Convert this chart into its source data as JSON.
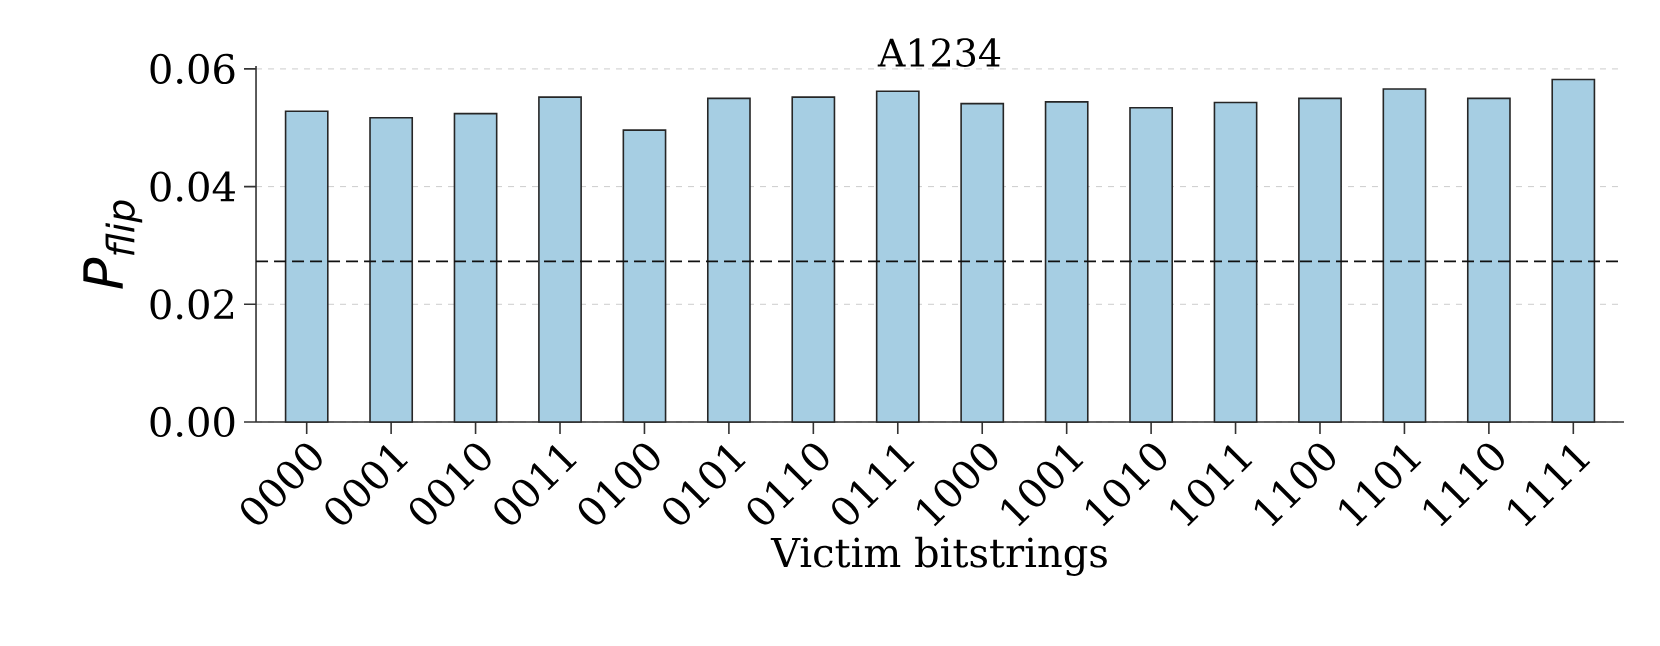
{
  "chart_data": {
    "type": "bar",
    "title": "A1234",
    "xlabel": "Victim bitstrings",
    "ylabel": "P$_{flip}$",
    "categories": [
      "0000",
      "0001",
      "0010",
      "0011",
      "0100",
      "0101",
      "0110",
      "0111",
      "1000",
      "1001",
      "1010",
      "1011",
      "1100",
      "1101",
      "1110",
      "1111"
    ],
    "values": [
      0.0528,
      0.0517,
      0.0524,
      0.0552,
      0.0496,
      0.055,
      0.0552,
      0.0562,
      0.0541,
      0.0544,
      0.0534,
      0.0543,
      0.055,
      0.0566,
      0.055,
      0.0582
    ],
    "color": "#a6cee3",
    "ylim": [
      0,
      0.0605
    ],
    "yticks": [
      {
        "value": 0,
        "label": "0.00"
      },
      {
        "value": 0.02,
        "label": "0.02"
      },
      {
        "value": 0.04,
        "label": "0.04"
      },
      {
        "value": 0.06,
        "label": "0.06"
      }
    ],
    "grid": "y",
    "ref_lines": [
      {
        "axis": "y",
        "value": 0.0273,
        "color": "#111111",
        "line_style": "dashed"
      }
    ]
  }
}
